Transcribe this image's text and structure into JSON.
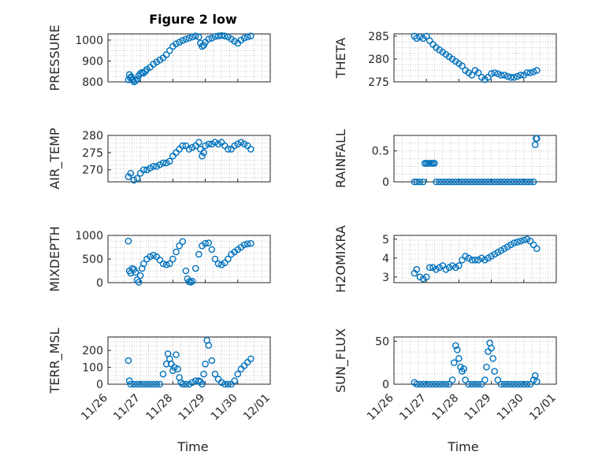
{
  "figure_title": "Figure 2 low",
  "x_ticks": [
    "11/26",
    "11/27",
    "11/28",
    "11/29",
    "11/30",
    "12/01"
  ],
  "colors": {
    "marker": "#0072BD",
    "axis": "#262626",
    "grid": "#bdbdbd"
  },
  "chart_data": [
    {
      "type": "scatter",
      "name": "pressure",
      "ylabel": "PRESSURE",
      "title": "Figure 2 low",
      "xlabel": "",
      "xlim": [
        0,
        5
      ],
      "ylim": [
        800,
        1030
      ],
      "yticks": [
        800,
        900,
        1000
      ],
      "x": [
        0.63,
        0.66,
        0.69,
        0.72,
        0.76,
        0.8,
        0.85,
        0.9,
        0.95,
        1.0,
        1.05,
        1.1,
        1.15,
        1.2,
        1.3,
        1.4,
        1.5,
        1.6,
        1.7,
        1.8,
        1.9,
        2.0,
        2.1,
        2.2,
        2.3,
        2.4,
        2.5,
        2.6,
        2.7,
        2.8,
        2.85,
        2.9,
        2.95,
        3.0,
        3.1,
        3.2,
        3.3,
        3.4,
        3.5,
        3.6,
        3.7,
        3.8,
        3.9,
        4.0,
        4.1,
        4.2,
        4.3,
        4.4
      ],
      "y": [
        810,
        835,
        820,
        825,
        810,
        800,
        805,
        812,
        830,
        840,
        845,
        842,
        850,
        860,
        870,
        885,
        895,
        905,
        915,
        930,
        950,
        970,
        982,
        990,
        998,
        1005,
        1010,
        1015,
        1020,
        1015,
        985,
        970,
        975,
        990,
        1005,
        1010,
        1018,
        1020,
        1022,
        1020,
        1015,
        1005,
        995,
        985,
        1000,
        1010,
        1015,
        1020
      ]
    },
    {
      "type": "scatter",
      "name": "theta",
      "ylabel": "THETA",
      "xlabel": "",
      "xlim": [
        0,
        5
      ],
      "ylim": [
        275,
        285.5
      ],
      "yticks": [
        275,
        280,
        285
      ],
      "x": [
        0.63,
        0.7,
        0.8,
        0.9,
        1.0,
        1.1,
        1.2,
        1.3,
        1.4,
        1.5,
        1.6,
        1.7,
        1.8,
        1.9,
        2.0,
        2.1,
        2.2,
        2.3,
        2.4,
        2.5,
        2.6,
        2.7,
        2.8,
        2.9,
        3.0,
        3.1,
        3.2,
        3.3,
        3.4,
        3.5,
        3.6,
        3.7,
        3.8,
        3.9,
        4.0,
        4.1,
        4.2,
        4.3,
        4.4
      ],
      "y": [
        285,
        284.5,
        284.8,
        284.5,
        285,
        284,
        283.2,
        282.5,
        282,
        281.5,
        281,
        280.5,
        280,
        279.5,
        279,
        278.5,
        277.5,
        277,
        276.5,
        277.5,
        277,
        276,
        275.5,
        276,
        276.8,
        277,
        276.8,
        276.5,
        276.5,
        276.2,
        276,
        276,
        276.2,
        276.5,
        276.5,
        277,
        277,
        277.2,
        277.5
      ]
    },
    {
      "type": "scatter",
      "name": "air_temp",
      "ylabel": "AIR_TEMP",
      "xlabel": "",
      "xlim": [
        0,
        5
      ],
      "ylim": [
        266.5,
        280
      ],
      "yticks": [
        270,
        275,
        280
      ],
      "x": [
        0.63,
        0.7,
        0.8,
        0.9,
        1.0,
        1.1,
        1.2,
        1.3,
        1.4,
        1.5,
        1.6,
        1.7,
        1.8,
        1.9,
        2.0,
        2.1,
        2.2,
        2.3,
        2.4,
        2.5,
        2.6,
        2.7,
        2.8,
        2.85,
        2.9,
        2.95,
        3.0,
        3.1,
        3.2,
        3.3,
        3.4,
        3.5,
        3.6,
        3.7,
        3.8,
        3.9,
        4.0,
        4.1,
        4.2,
        4.3,
        4.4
      ],
      "y": [
        268,
        269,
        267,
        267.5,
        269,
        270,
        270,
        270.5,
        271,
        271,
        271.5,
        272,
        272,
        272.5,
        274,
        275,
        276,
        277,
        277,
        276,
        276.5,
        277,
        278,
        276,
        274,
        275,
        277,
        277.5,
        277.5,
        278,
        277.5,
        278,
        277,
        276,
        276,
        277,
        277.5,
        278,
        277.5,
        277,
        276
      ]
    },
    {
      "type": "scatter",
      "name": "rainfall",
      "ylabel": "RAINFALL",
      "xlabel": "",
      "xlim": [
        0,
        5
      ],
      "ylim": [
        0,
        0.75
      ],
      "yticks": [
        0,
        0.5
      ],
      "x": [
        0.63,
        0.7,
        0.8,
        0.9,
        0.95,
        1.0,
        1.05,
        1.1,
        1.15,
        1.2,
        1.25,
        1.3,
        1.4,
        1.5,
        1.6,
        1.7,
        1.8,
        1.9,
        2.0,
        2.1,
        2.2,
        2.3,
        2.4,
        2.5,
        2.6,
        2.7,
        2.8,
        2.9,
        3.0,
        3.1,
        3.2,
        3.3,
        3.4,
        3.5,
        3.6,
        3.7,
        3.8,
        3.9,
        4.0,
        4.1,
        4.2,
        4.3,
        4.35,
        4.38,
        4.4
      ],
      "y": [
        0,
        0,
        0,
        0,
        0.3,
        0.3,
        0.3,
        0.3,
        0.3,
        0.3,
        0.3,
        0,
        0,
        0,
        0,
        0,
        0,
        0,
        0,
        0,
        0,
        0,
        0,
        0,
        0,
        0,
        0,
        0,
        0,
        0,
        0,
        0,
        0,
        0,
        0,
        0,
        0,
        0,
        0,
        0,
        0,
        0,
        0.6,
        0.7,
        0.7
      ]
    },
    {
      "type": "scatter",
      "name": "mixdepth",
      "ylabel": "MIXDEPTH",
      "xlabel": "",
      "xlim": [
        0,
        5
      ],
      "ylim": [
        0,
        1000
      ],
      "yticks": [
        0,
        500,
        1000
      ],
      "x": [
        0.63,
        0.66,
        0.7,
        0.75,
        0.8,
        0.85,
        0.9,
        0.95,
        1.0,
        1.05,
        1.1,
        1.2,
        1.3,
        1.4,
        1.5,
        1.6,
        1.7,
        1.8,
        1.9,
        2.0,
        2.1,
        2.2,
        2.3,
        2.4,
        2.45,
        2.5,
        2.55,
        2.6,
        2.7,
        2.8,
        2.9,
        3.0,
        3.1,
        3.2,
        3.3,
        3.4,
        3.5,
        3.6,
        3.7,
        3.8,
        3.9,
        4.0,
        4.1,
        4.2,
        4.3,
        4.4
      ],
      "y": [
        880,
        250,
        200,
        300,
        280,
        220,
        60,
        10,
        150,
        300,
        400,
        500,
        550,
        580,
        550,
        480,
        400,
        380,
        400,
        500,
        650,
        780,
        870,
        250,
        80,
        20,
        10,
        30,
        300,
        600,
        780,
        830,
        840,
        700,
        500,
        400,
        380,
        420,
        500,
        600,
        650,
        700,
        750,
        800,
        820,
        830
      ]
    },
    {
      "type": "scatter",
      "name": "h2omixra",
      "ylabel": "H2OMIXRA",
      "xlabel": "",
      "xlim": [
        0,
        5
      ],
      "ylim": [
        2.7,
        5.2
      ],
      "yticks": [
        3,
        4,
        5
      ],
      "x": [
        0.63,
        0.7,
        0.8,
        0.9,
        1.0,
        1.1,
        1.2,
        1.3,
        1.4,
        1.5,
        1.6,
        1.7,
        1.8,
        1.9,
        2.0,
        2.1,
        2.2,
        2.3,
        2.4,
        2.5,
        2.6,
        2.7,
        2.8,
        2.9,
        3.0,
        3.1,
        3.2,
        3.3,
        3.4,
        3.5,
        3.6,
        3.7,
        3.8,
        3.9,
        4.0,
        4.1,
        4.2,
        4.3,
        4.4
      ],
      "y": [
        3.2,
        3.4,
        3.0,
        2.9,
        3.0,
        3.5,
        3.5,
        3.4,
        3.5,
        3.6,
        3.4,
        3.5,
        3.6,
        3.5,
        3.6,
        3.9,
        4.1,
        4.0,
        3.9,
        3.9,
        3.9,
        4.0,
        3.9,
        4.0,
        4.1,
        4.2,
        4.3,
        4.4,
        4.5,
        4.6,
        4.7,
        4.8,
        4.85,
        4.9,
        4.95,
        5.0,
        4.9,
        4.7,
        4.5
      ]
    },
    {
      "type": "scatter",
      "name": "terr_msl",
      "ylabel": "TERR_MSL",
      "xlabel": "Time",
      "xlim": [
        0,
        5
      ],
      "ylim": [
        0,
        280
      ],
      "yticks": [
        0,
        100,
        200
      ],
      "x": [
        0.63,
        0.66,
        0.7,
        0.8,
        0.9,
        1.0,
        1.1,
        1.2,
        1.3,
        1.4,
        1.5,
        1.6,
        1.7,
        1.8,
        1.85,
        1.9,
        1.95,
        2.0,
        2.05,
        2.1,
        2.15,
        2.2,
        2.25,
        2.3,
        2.4,
        2.5,
        2.6,
        2.7,
        2.8,
        2.85,
        2.9,
        2.95,
        3.0,
        3.05,
        3.1,
        3.2,
        3.3,
        3.4,
        3.5,
        3.6,
        3.7,
        3.8,
        3.9,
        4.0,
        4.1,
        4.2,
        4.3,
        4.4
      ],
      "y": [
        140,
        20,
        0,
        0,
        0,
        0,
        0,
        0,
        0,
        0,
        0,
        0,
        60,
        120,
        180,
        150,
        120,
        80,
        100,
        175,
        90,
        40,
        10,
        0,
        0,
        0,
        10,
        20,
        20,
        15,
        0,
        60,
        120,
        260,
        230,
        140,
        60,
        30,
        10,
        0,
        0,
        0,
        20,
        60,
        90,
        110,
        130,
        150
      ]
    },
    {
      "type": "scatter",
      "name": "sun_flux",
      "ylabel": "SUN_FLUX",
      "xlabel": "Time",
      "xlim": [
        0,
        5
      ],
      "ylim": [
        0,
        55
      ],
      "yticks": [
        0,
        50
      ],
      "x": [
        0.63,
        0.7,
        0.8,
        0.9,
        1.0,
        1.1,
        1.2,
        1.3,
        1.4,
        1.5,
        1.6,
        1.7,
        1.8,
        1.85,
        1.9,
        1.95,
        2.0,
        2.05,
        2.1,
        2.15,
        2.2,
        2.3,
        2.4,
        2.5,
        2.6,
        2.7,
        2.8,
        2.85,
        2.9,
        2.95,
        3.0,
        3.05,
        3.1,
        3.2,
        3.3,
        3.4,
        3.5,
        3.6,
        3.7,
        3.8,
        3.9,
        4.0,
        4.1,
        4.2,
        4.3,
        4.35,
        4.4
      ],
      "y": [
        2,
        0,
        0,
        0,
        0,
        0,
        0,
        0,
        0,
        0,
        0,
        0,
        5,
        25,
        45,
        40,
        30,
        20,
        15,
        18,
        5,
        0,
        0,
        0,
        0,
        0,
        5,
        20,
        38,
        48,
        42,
        30,
        15,
        5,
        0,
        0,
        0,
        0,
        0,
        0,
        0,
        0,
        0,
        0,
        5,
        10,
        3
      ]
    }
  ]
}
